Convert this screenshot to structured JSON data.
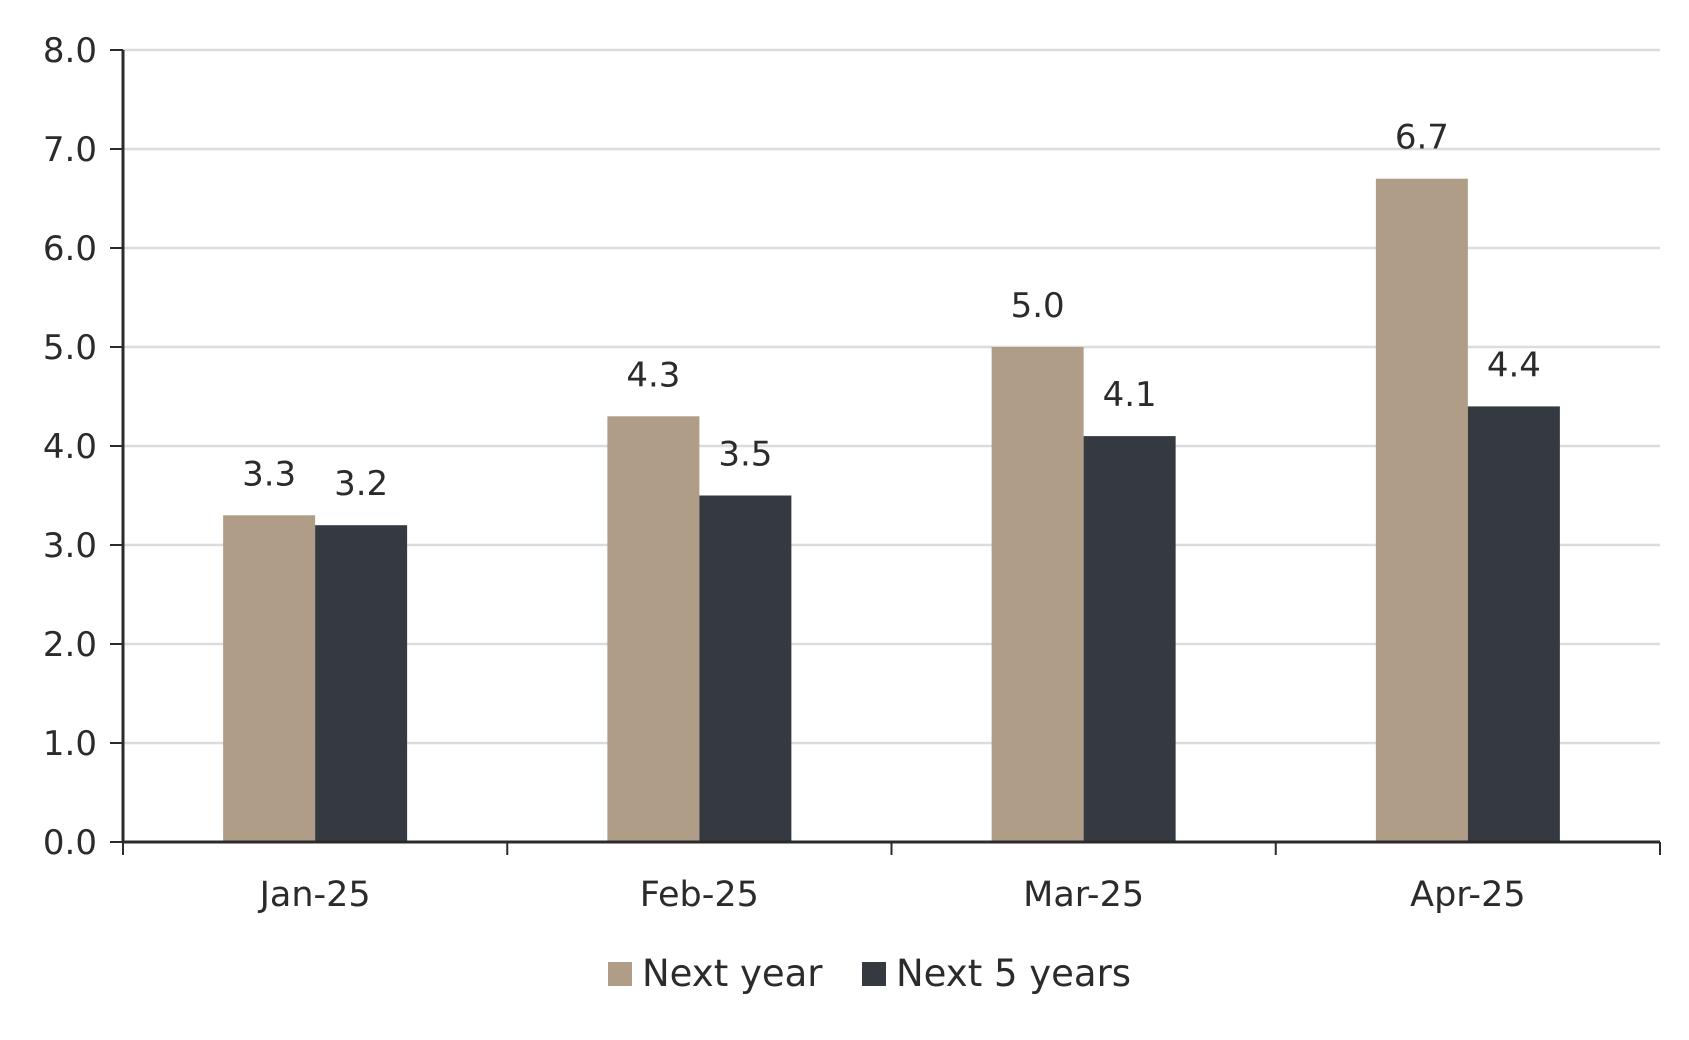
{
  "chart_data": {
    "type": "bar",
    "title": "",
    "xlabel": "",
    "ylabel": "",
    "categories": [
      "Jan-25",
      "Feb-25",
      "Mar-25",
      "Apr-25"
    ],
    "series": [
      {
        "name": "Next year",
        "values": [
          3.3,
          4.3,
          5.0,
          6.7
        ],
        "color": "#b09d87"
      },
      {
        "name": "Next 5 years",
        "values": [
          3.2,
          3.5,
          4.1,
          4.4
        ],
        "color": "#353a40"
      }
    ],
    "data_labels": [
      [
        "3.3",
        "4.3",
        "5.0",
        "6.7"
      ],
      [
        "3.2",
        "3.5",
        "4.1",
        "4.4"
      ]
    ],
    "ylim": [
      0,
      8
    ],
    "yticks": [
      0,
      1,
      2,
      3,
      4,
      5,
      6,
      7,
      8
    ],
    "ytick_labels": [
      "0.0",
      "1.0",
      "2.0",
      "3.0",
      "4.0",
      "5.0",
      "6.0",
      "7.0",
      "8.0"
    ],
    "grid": true,
    "legend_position": "bottom-center"
  }
}
